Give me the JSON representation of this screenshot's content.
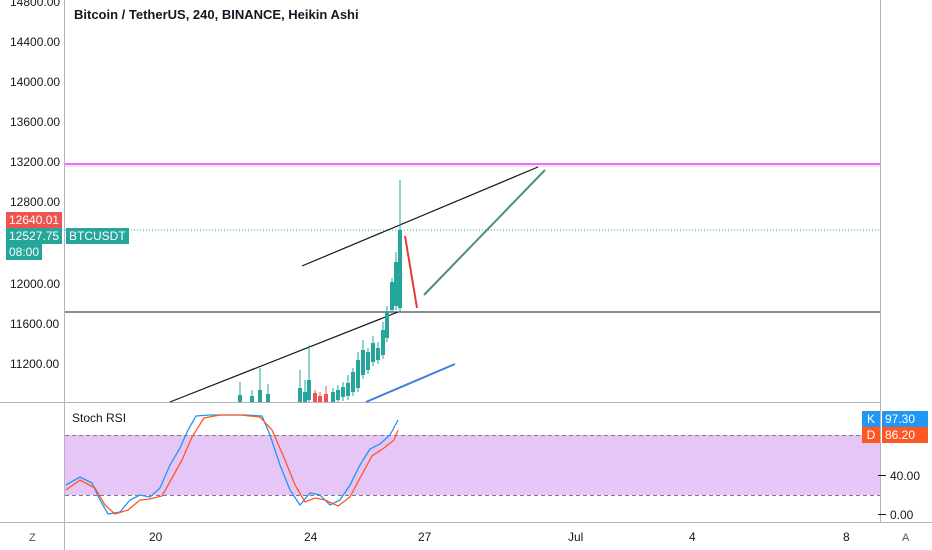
{
  "chart_title": "Bitcoin / TetherUS, 240, BINANCE, Heikin Ashi",
  "price_axis_ticks": [
    {
      "label": "14800.00",
      "value": 14800
    },
    {
      "label": "14400.00",
      "value": 14400
    },
    {
      "label": "14000.00",
      "value": 14000
    },
    {
      "label": "13600.00",
      "value": 13600
    },
    {
      "label": "13200.00",
      "value": 13200
    },
    {
      "label": "12800.00",
      "value": 12800
    },
    {
      "label": "12000.00",
      "value": 12000
    },
    {
      "label": "11600.00",
      "value": 11600
    },
    {
      "label": "11200.00",
      "value": 11200
    }
  ],
  "price_badges": {
    "high": {
      "label": "12640.01",
      "color": "#ef5350"
    },
    "last": {
      "label": "12527.75",
      "color": "#26a69a"
    },
    "symbol": {
      "label": "BTCUSDT",
      "color": "#26a69a"
    },
    "countdown": {
      "label": "08:00",
      "color": "#26a69a"
    }
  },
  "time_axis_ticks": [
    "20",
    "24",
    "27",
    "Jul",
    "4",
    "8"
  ],
  "indicator": {
    "title": "Stoch RSI",
    "k_label": "K",
    "k_value": "97.30",
    "d_label": "D",
    "d_value": "86.20",
    "axis_ticks": [
      "40.00",
      "0.00"
    ],
    "k_color": "#2196f3",
    "d_color": "#ff5722",
    "band_color": "#e6c6f7"
  },
  "corner_buttons": {
    "left": "Z",
    "right": "A"
  },
  "colors": {
    "up_candle": "#26a69a",
    "down_candle": "#ef5350",
    "resistance_line": "#e040fb",
    "support_line": "#131722",
    "projection_line": "#4e8f78",
    "blue_trend": "#3b82d6"
  },
  "chart_data": {
    "type": "candlestick",
    "title": "Bitcoin / TetherUS, 240, BINANCE, Heikin Ashi",
    "y_range": [
      10800,
      14900
    ],
    "horizontal_levels": [
      13180,
      11730
    ],
    "last_price": 12527.75
  }
}
